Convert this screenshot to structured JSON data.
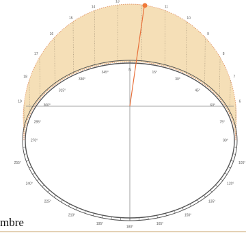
{
  "hour_labels": [
    "19",
    "18",
    "17",
    "16",
    "15",
    "14",
    "13",
    "11",
    "10",
    "9",
    "8",
    "7",
    "6"
  ],
  "inner_azimuth_labels": [
    "270°",
    "285°",
    "300°",
    "315°",
    "330°",
    "345°",
    "N",
    "15°",
    "30°",
    "45°",
    "60°",
    "75°",
    "90°"
  ],
  "outer_azimuth_labels": [
    "255°",
    "240°",
    "225°",
    "210°",
    "195°",
    "180°",
    "165°",
    "150°",
    "135°",
    "120°",
    "105°"
  ],
  "caption": "mbre"
}
